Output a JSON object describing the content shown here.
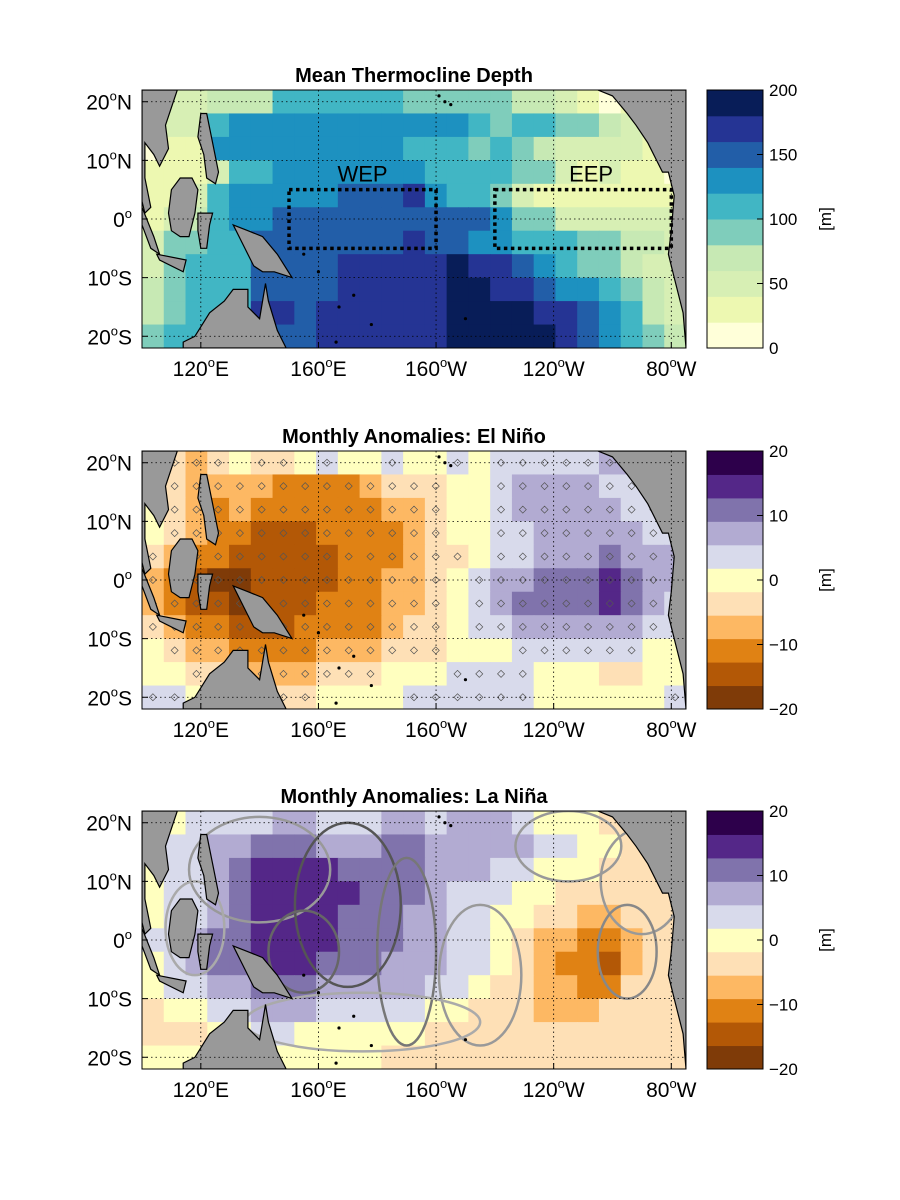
{
  "chart_data": [
    {
      "type": "heatmap",
      "title": "Mean Thermocline Depth",
      "colorbar": {
        "label": "[m]",
        "ticks": [
          0,
          50,
          100,
          150,
          200
        ],
        "range": [
          0,
          200
        ],
        "colors": [
          "#ffffd9",
          "#edf8b1",
          "#d7efb4",
          "#c7e9b4",
          "#7fcdbb",
          "#41b6c4",
          "#1d91c0",
          "#225ea8",
          "#253494",
          "#081d58"
        ]
      },
      "xticks": [
        "120°E",
        "160°E",
        "160°W",
        "120°W",
        "80°W"
      ],
      "yticks": [
        "20°N",
        "10°N",
        "0°",
        "10°S",
        "20°S"
      ],
      "boxes": [
        {
          "label": "WEP",
          "lon": [
            150,
            200
          ],
          "lat": [
            -5,
            5
          ]
        },
        {
          "label": "EEP",
          "lon": [
            220,
            280
          ],
          "lat": [
            -5,
            5
          ]
        }
      ],
      "grid_rows": [
        "1223335555554444433210123",
        "1225666666666665455443221",
        "0116666666665554543222212",
        "1112556666666555544212110",
        "1125666667778655421111111",
        "1235667777777777644222222",
        "2445577777778776655544332",
        "2455577778888898876544322",
        "3455577778888899887665432",
        "3455588788888899998876532",
        "4556667788888899999876543"
      ]
    },
    {
      "type": "heatmap",
      "title": "Monthly Anomalies: El Niño",
      "colorbar": {
        "label": "[m]",
        "ticks": [
          -20,
          -10,
          0,
          10,
          20
        ],
        "range": [
          -20,
          20
        ],
        "colors": [
          "#7f3b08",
          "#b35806",
          "#e08214",
          "#fdb863",
          "#fee0b6",
          "#ffffbf",
          "#d8daeb",
          "#b2abd2",
          "#8073ac",
          "#542788",
          "#2d004b"
        ]
      },
      "xticks": [
        "120°E",
        "160°E",
        "160°W",
        "120°W",
        "80°W"
      ],
      "yticks": [
        "20°N",
        "10°N",
        "0°",
        "10°S",
        "20°S"
      ],
      "grid_rows": [
        "9434544565565565666667776",
        "5433332222344455677776666",
        "5432322222233455677777666",
        "5432211122223455667777766",
        "4322111112223445667778777",
        "3210011112233456778889877",
        "3211011122233456788889876",
        "4322111222234456677777766",
        "5433222233344455566666655",
        "5544333344455566665554455",
        "6655444455556666665555556"
      ]
    },
    {
      "type": "heatmap",
      "title": "Monthly Anomalies: La Niña",
      "colorbar": {
        "label": "[m]",
        "ticks": [
          -20,
          -10,
          0,
          10,
          20
        ],
        "range": [
          -20,
          20
        ],
        "colors": [
          "#7f3b08",
          "#b35806",
          "#e08214",
          "#fdb863",
          "#fee0b6",
          "#ffffbf",
          "#d8daeb",
          "#b2abd2",
          "#8073ac",
          "#542788",
          "#2d004b"
        ]
      },
      "xticks": [
        "120°E",
        "160°E",
        "160°W",
        "120°W",
        "80°W"
      ],
      "yticks": [
        "20°N",
        "10°N",
        "0°",
        "10°S",
        "20°S"
      ],
      "grid_rows": [
        "5566667766677677765554444",
        "5667788877788777776655444",
        "5667899998888777665554444",
        "5667899999888766655444444",
        "5667899998887766554433444",
        "6678899998887766543322344",
        "5678899988877766543221344",
        "5667788877777665443322444",
        "4556677766666554443334444",
        "4445566555555444444444444",
        "5554445555544444444444444"
      ]
    }
  ]
}
